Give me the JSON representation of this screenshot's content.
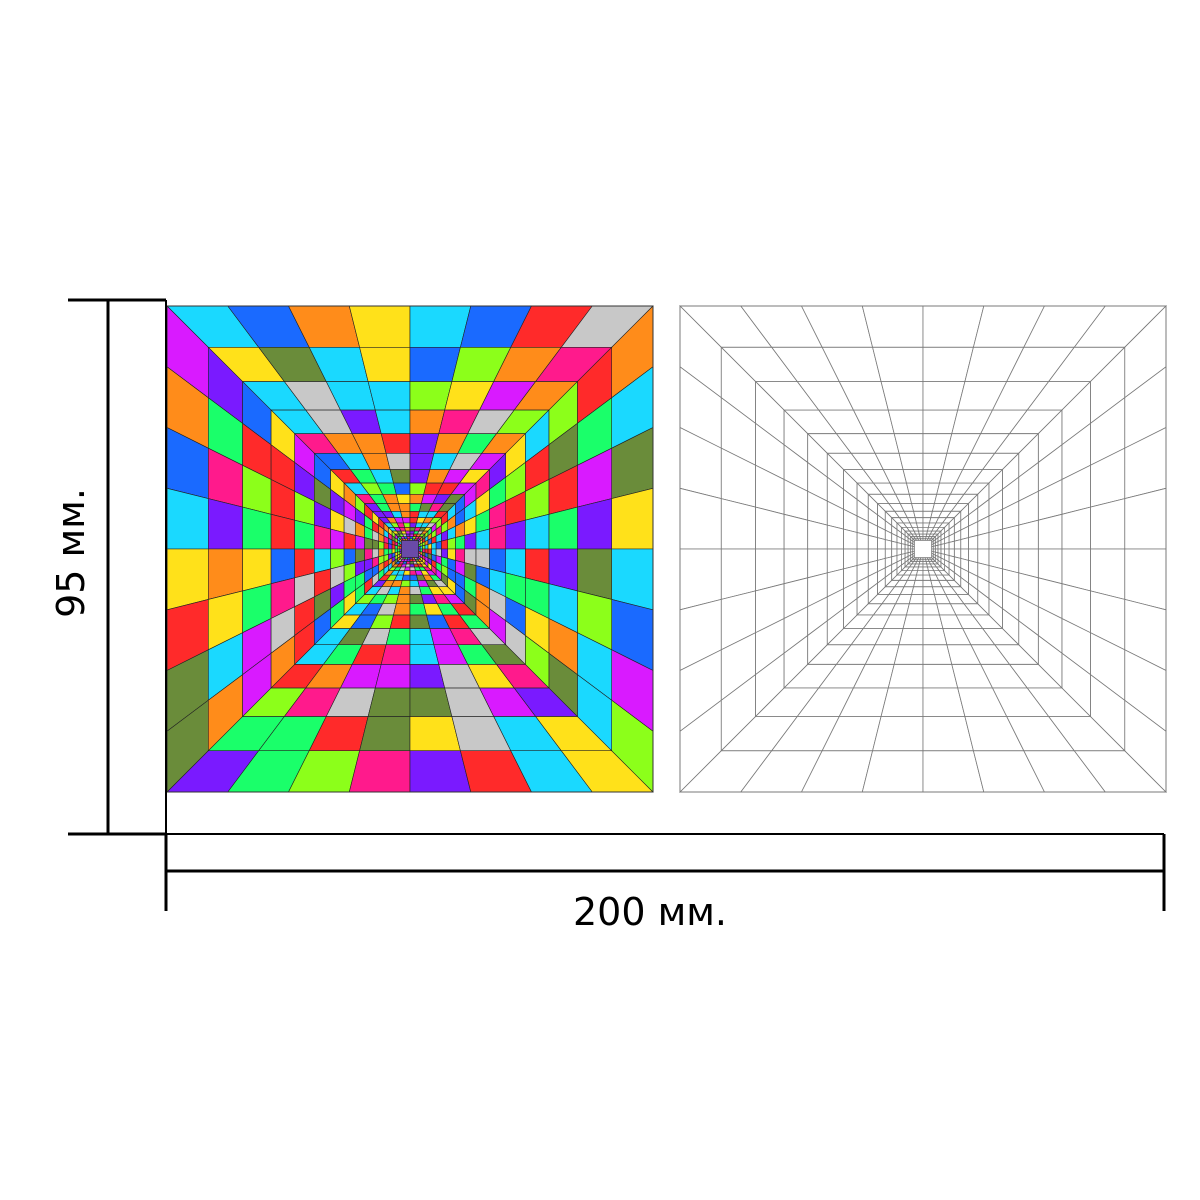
{
  "dimensions": {
    "height_label": "95 мм.",
    "width_label": "200 мм."
  },
  "panels": {
    "colored": {
      "grid_cells": 8,
      "depth_rings": 18,
      "palette": [
        "#ff2a2a",
        "#ff8c1a",
        "#ffe11a",
        "#8cff1a",
        "#1aff6a",
        "#1ad9ff",
        "#1a6aff",
        "#7a1aff",
        "#d91aff",
        "#ff1a8c",
        "#c8c8c8",
        "#6a8c3a"
      ]
    },
    "outline": {
      "grid_cells": 8,
      "depth_rings": 18,
      "line_color": "#7a7a7a"
    }
  },
  "colors": {
    "dimension_line": "#000000"
  }
}
